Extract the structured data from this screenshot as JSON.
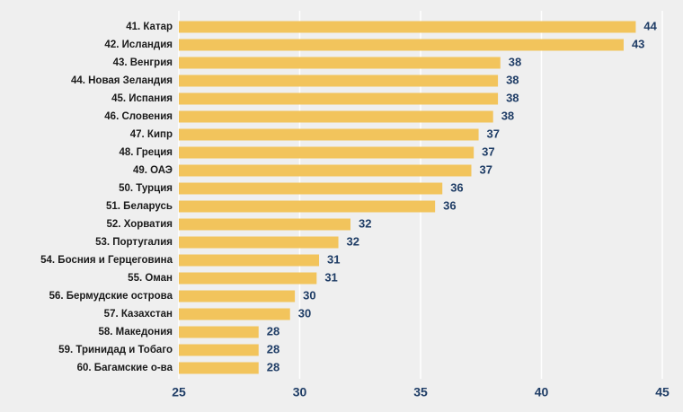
{
  "chart_data": {
    "type": "bar",
    "orientation": "horizontal",
    "categories": [
      "41. Катар",
      "42. Исландия",
      "43. Венгрия",
      "44. Новая Зеландия",
      "45. Испания",
      "46. Словения",
      "47. Кипр",
      "48. Греция",
      "49. ОАЭ",
      "50. Турция",
      "51. Беларусь",
      "52. Хорватия",
      "53. Португалия",
      "54. Босния и Герцеговина",
      "55. Оман",
      "56. Бермудские острова",
      "57. Казахстан",
      "58. Македония",
      "59. Тринидад и Тобаго",
      "60. Багамские о-ва"
    ],
    "values": [
      43.9,
      43.4,
      38.3,
      38.2,
      38.2,
      38.0,
      37.4,
      37.2,
      37.1,
      35.9,
      35.6,
      32.1,
      31.6,
      30.8,
      30.7,
      29.8,
      29.6,
      28.3,
      28.3,
      28.3
    ],
    "value_labels": [
      "44",
      "43",
      "38",
      "38",
      "38",
      "38",
      "37",
      "37",
      "37",
      "36",
      "36",
      "32",
      "32",
      "31",
      "31",
      "30",
      "30",
      "28",
      "28",
      "28"
    ],
    "color": "#f2c45c",
    "xlim": [
      25,
      45
    ],
    "xticks": [
      25,
      30,
      35,
      40,
      45
    ],
    "grid": true
  }
}
